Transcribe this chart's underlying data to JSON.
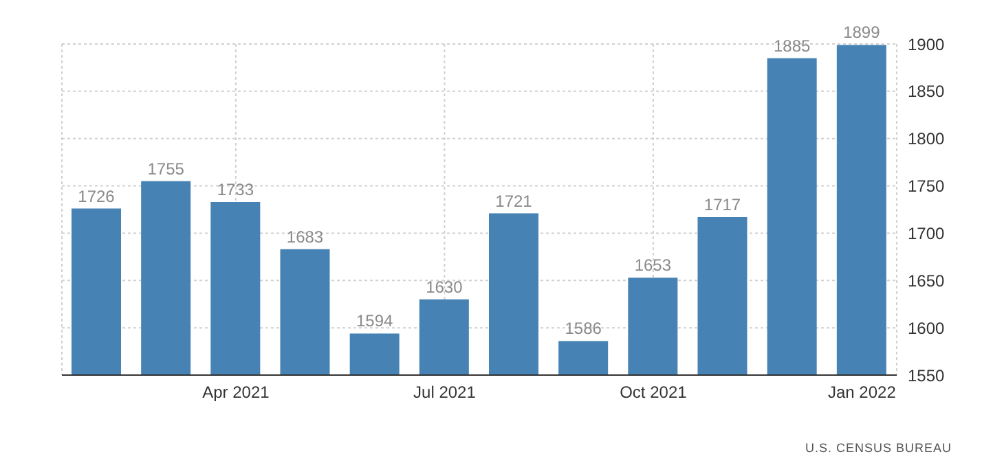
{
  "chart_data": {
    "type": "bar",
    "categories": [
      null,
      null,
      "Apr 2021",
      null,
      null,
      "Jul 2021",
      null,
      null,
      "Oct 2021",
      null,
      null,
      "Jan 2022"
    ],
    "values": [
      1726,
      1755,
      1733,
      1683,
      1594,
      1630,
      1721,
      1586,
      1653,
      1717,
      1885,
      1899
    ],
    "color": "#4682b4",
    "ylim": [
      1550,
      1900
    ],
    "yticks": [
      1550,
      1600,
      1650,
      1700,
      1750,
      1800,
      1850,
      1900
    ],
    "grid": true,
    "data_labels": true,
    "annotations": [
      "U.S. CENSUS BUREAU"
    ]
  }
}
